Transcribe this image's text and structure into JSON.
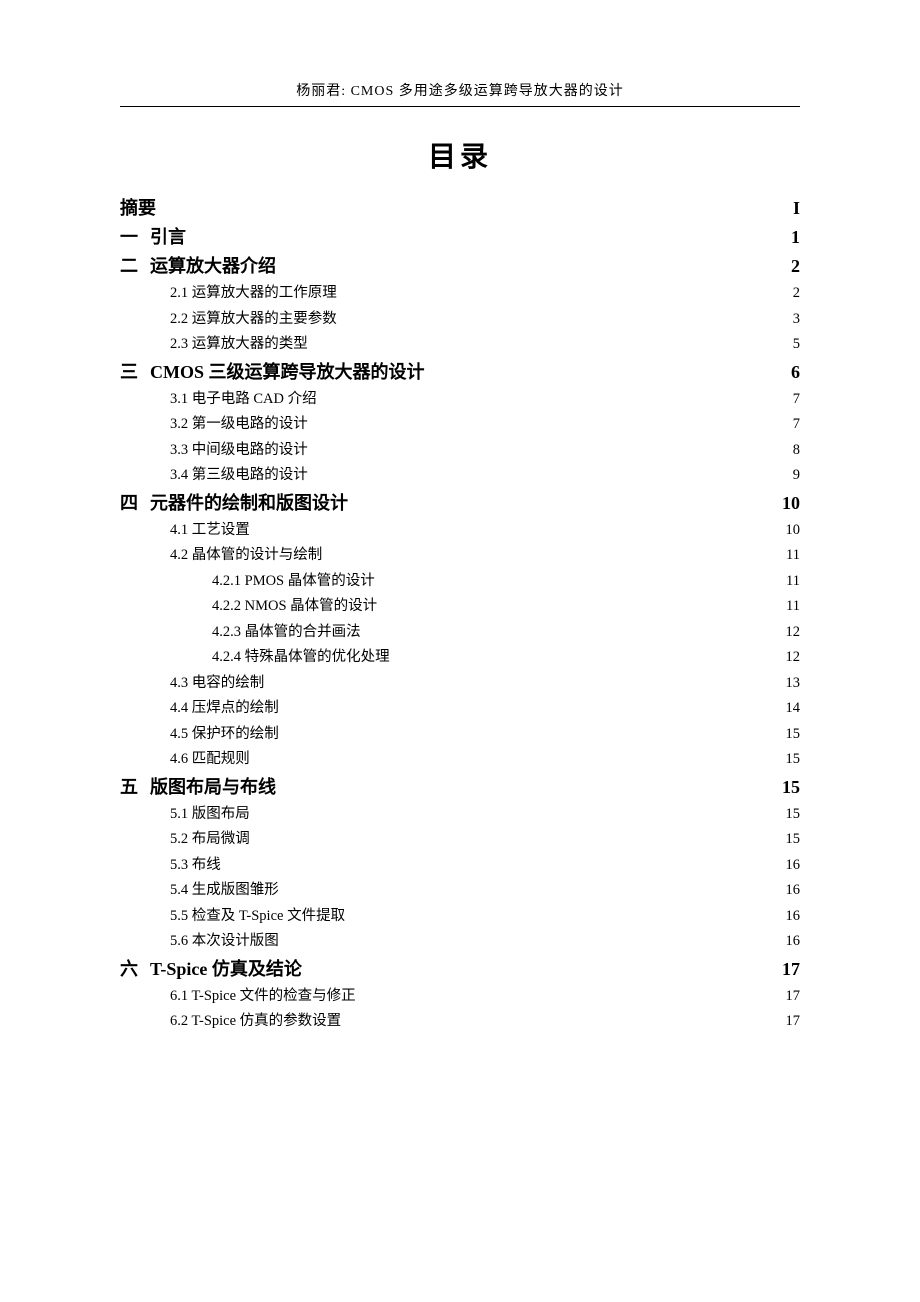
{
  "header": "杨丽君: CMOS 多用途多级运算跨导放大器的设计",
  "title": "目录",
  "toc": [
    {
      "level": 0,
      "label": "摘要",
      "page": "I"
    },
    {
      "level": 0,
      "num": "一",
      "label": "引言",
      "page": "1"
    },
    {
      "level": 0,
      "num": "二",
      "label": "运算放大器介绍",
      "page": "2"
    },
    {
      "level": 1,
      "label": "2.1 运算放大器的工作原理",
      "page": "2"
    },
    {
      "level": 1,
      "label": "2.2 运算放大器的主要参数",
      "page": "3"
    },
    {
      "level": 1,
      "label": "2.3 运算放大器的类型",
      "page": "5"
    },
    {
      "level": 0,
      "num": "三",
      "label": "CMOS 三级运算跨导放大器的设计",
      "page": "6"
    },
    {
      "level": 1,
      "label": "3.1 电子电路 CAD 介绍",
      "page": "7"
    },
    {
      "level": 1,
      "label": "3.2 第一级电路的设计",
      "page": "7"
    },
    {
      "level": 1,
      "label": "3.3 中间级电路的设计",
      "page": "8"
    },
    {
      "level": 1,
      "label": "3.4 第三级电路的设计",
      "page": "9"
    },
    {
      "level": 0,
      "num": "四",
      "label": "元器件的绘制和版图设计",
      "page": "10"
    },
    {
      "level": 1,
      "label": "4.1 工艺设置",
      "page": "10"
    },
    {
      "level": 1,
      "label": "4.2 晶体管的设计与绘制",
      "page": "11"
    },
    {
      "level": 2,
      "label": "4.2.1 PMOS 晶体管的设计",
      "page": "11"
    },
    {
      "level": 2,
      "label": "4.2.2 NMOS 晶体管的设计",
      "page": "11"
    },
    {
      "level": 2,
      "label": "4.2.3 晶体管的合并画法",
      "page": "12"
    },
    {
      "level": 2,
      "label": "4.2.4 特殊晶体管的优化处理",
      "page": "12"
    },
    {
      "level": 1,
      "label": "4.3 电容的绘制",
      "page": "13"
    },
    {
      "level": 1,
      "label": "4.4 压焊点的绘制",
      "page": "14"
    },
    {
      "level": 1,
      "label": "4.5 保护环的绘制",
      "page": "15"
    },
    {
      "level": 1,
      "label": "4.6 匹配规则",
      "page": "15"
    },
    {
      "level": 0,
      "num": "五",
      "label": "版图布局与布线",
      "page": "15"
    },
    {
      "level": 1,
      "label": "5.1 版图布局",
      "page": "15"
    },
    {
      "level": 1,
      "label": "5.2 布局微调",
      "page": "15"
    },
    {
      "level": 1,
      "label": "5.3 布线",
      "page": "16"
    },
    {
      "level": 1,
      "label": "5.4 生成版图雏形",
      "page": "16"
    },
    {
      "level": 1,
      "label": "5.5 检查及 T-Spice 文件提取",
      "page": "16"
    },
    {
      "level": 1,
      "label": "5.6 本次设计版图",
      "page": "16"
    },
    {
      "level": 0,
      "num": "六",
      "label": "T-Spice 仿真及结论",
      "page": "17"
    },
    {
      "level": 1,
      "label": "6.1 T-Spice 文件的检查与修正",
      "page": "17"
    },
    {
      "level": 1,
      "label": "6.2 T-Spice 仿真的参数设置",
      "page": "17"
    }
  ]
}
